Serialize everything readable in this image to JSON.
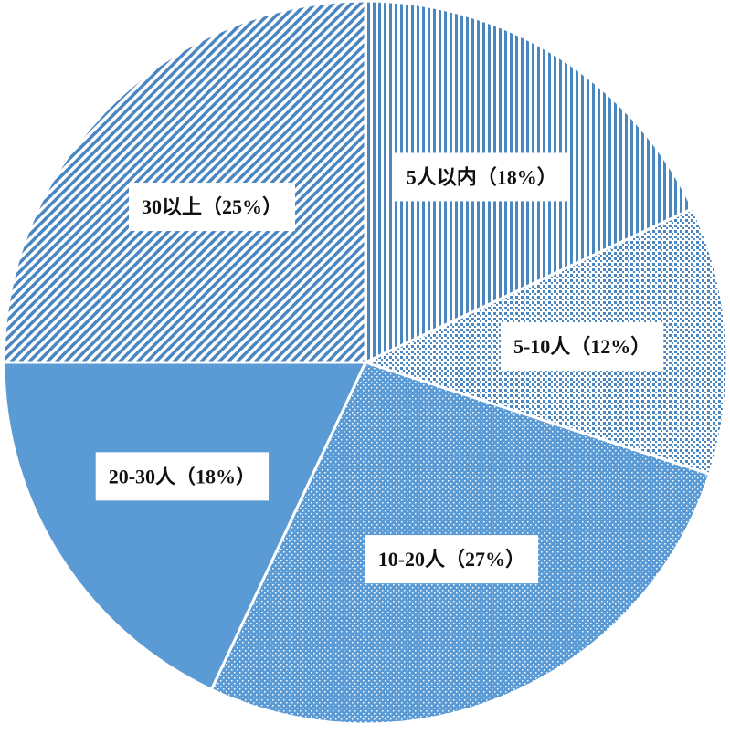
{
  "chart_data": {
    "type": "pie",
    "categories": [
      "5人以内",
      "5-10人",
      "10-20人",
      "20-30人",
      "30以上"
    ],
    "values": [
      18,
      12,
      27,
      18,
      25
    ],
    "value_labels": [
      "（18%）",
      "（12%）",
      "（27%）",
      "（18%）",
      "（25%）"
    ],
    "colors": [
      "#4a86c0",
      "#4a86c0",
      "#5b9bd5",
      "#5b9bd5",
      "#4a86c0"
    ]
  }
}
